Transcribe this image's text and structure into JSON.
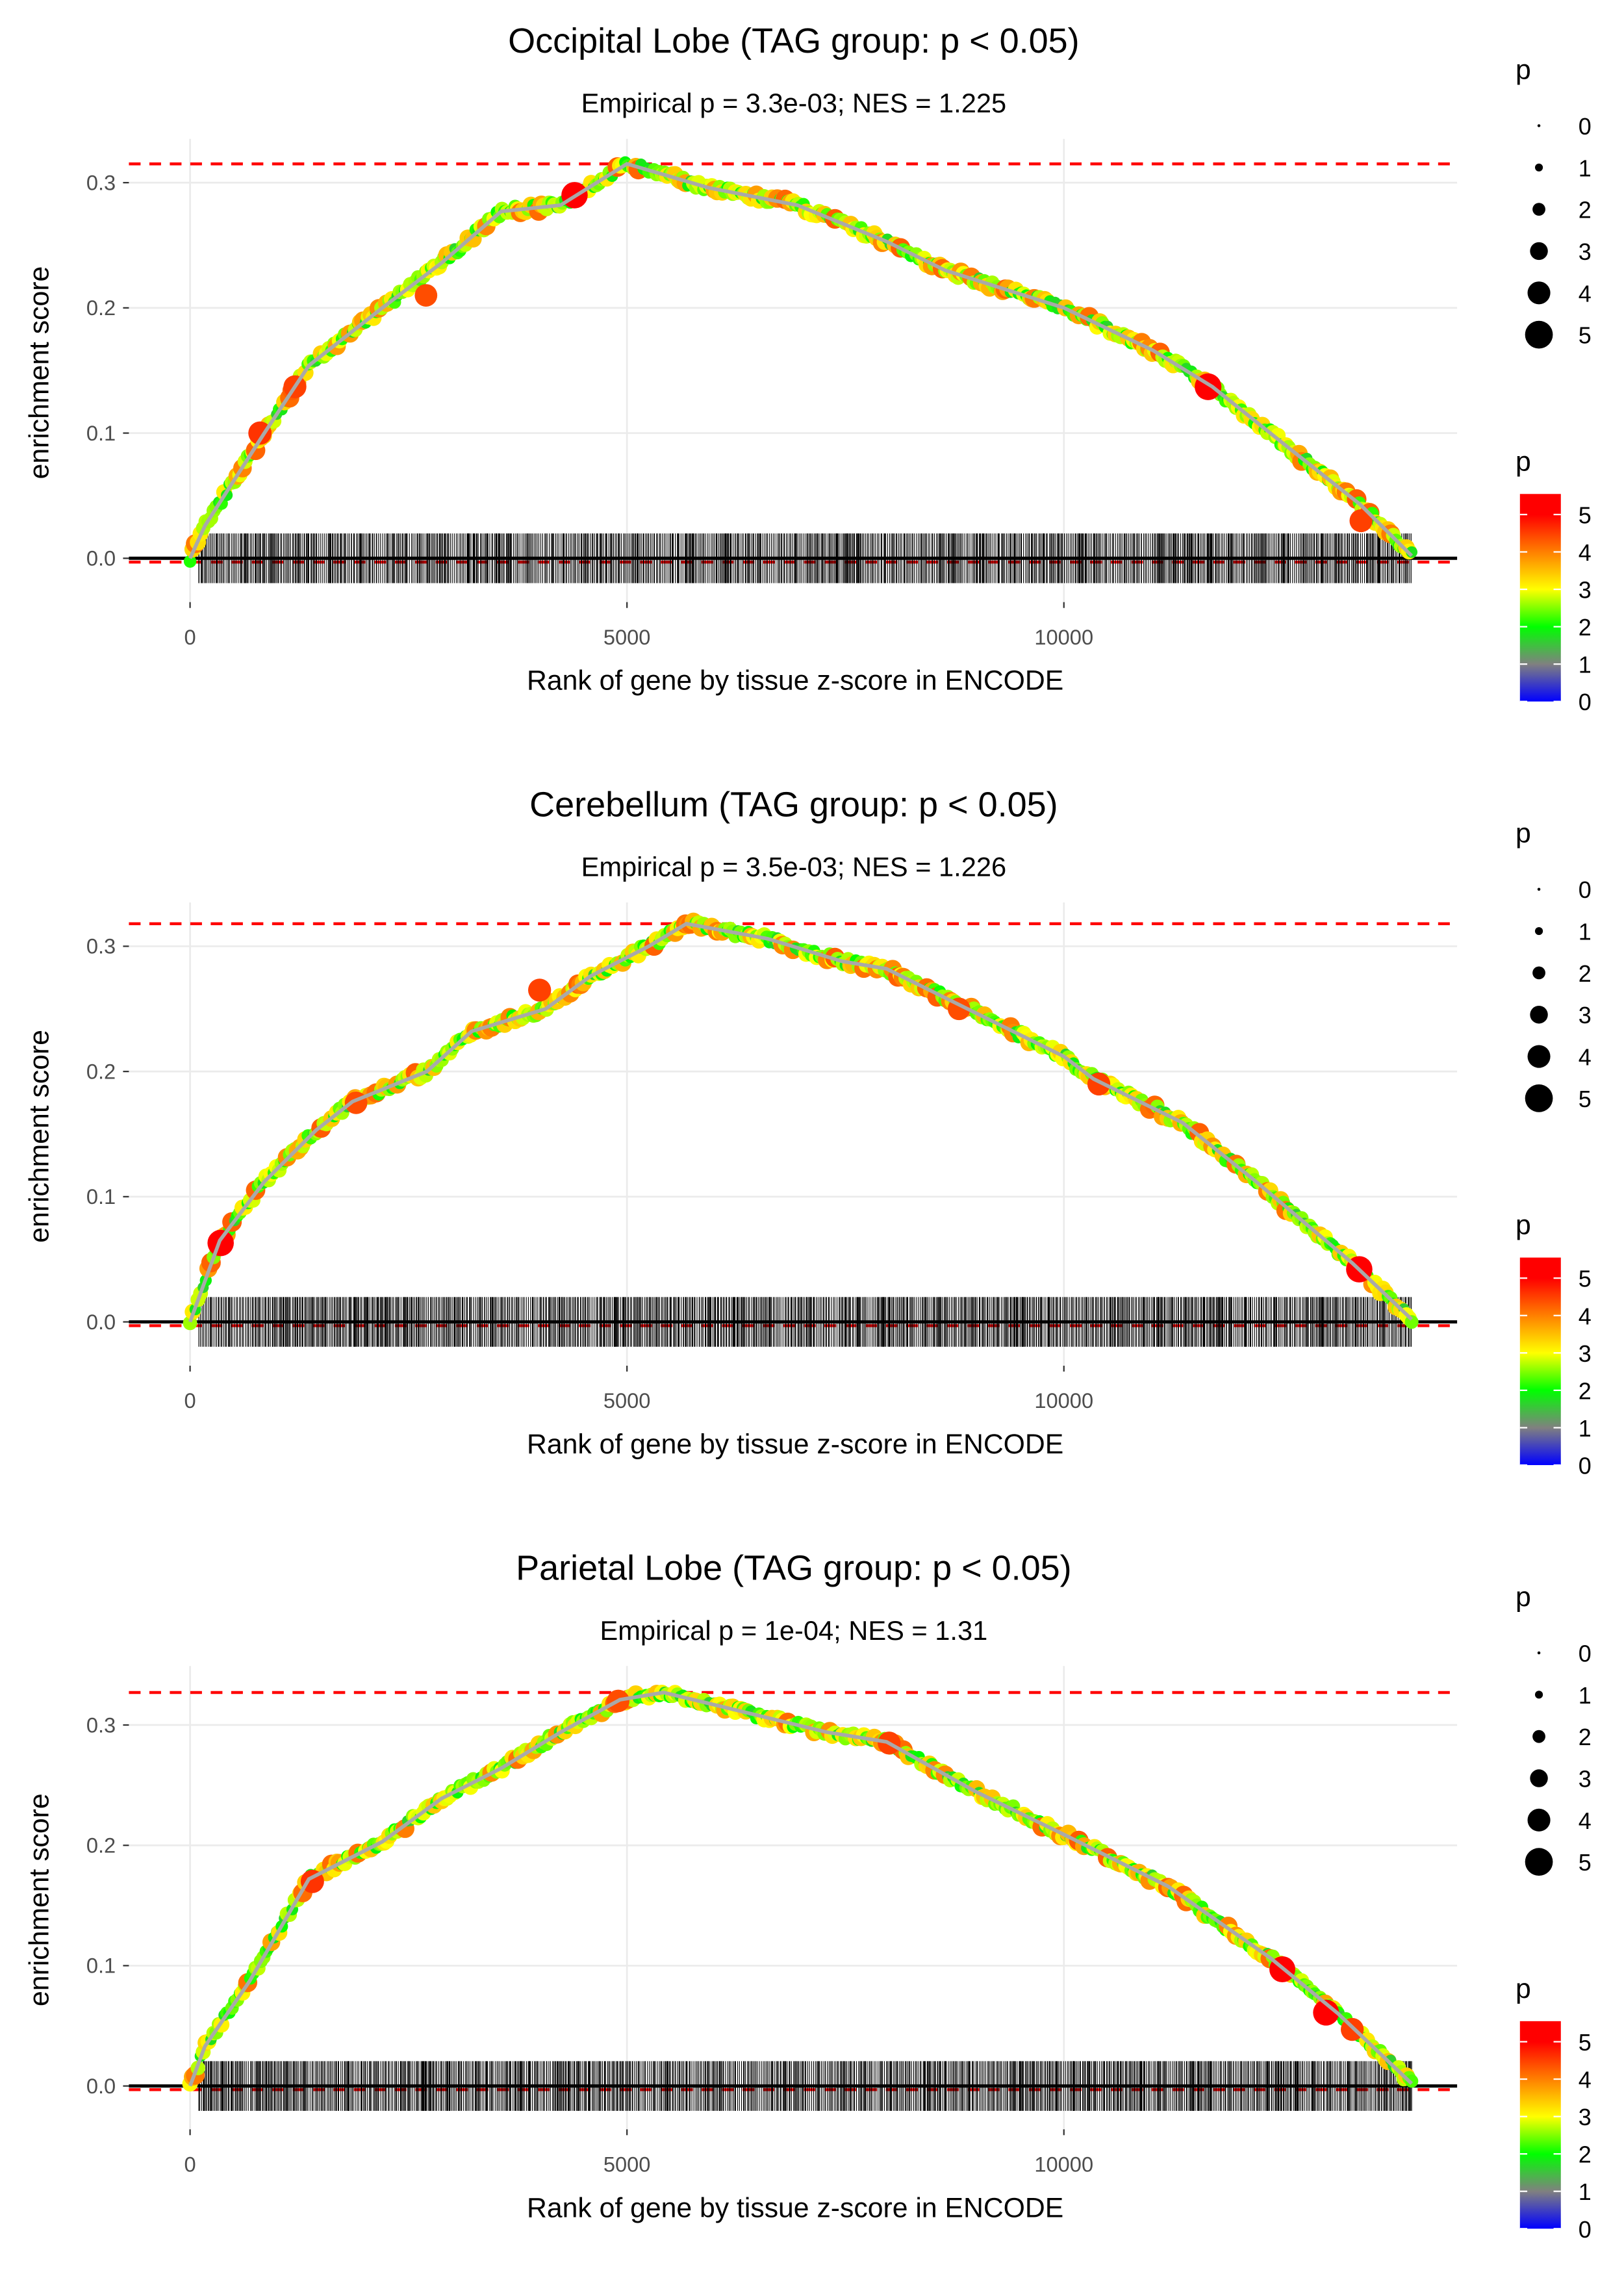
{
  "chart_data": [
    {
      "type": "line",
      "title": "Occipital Lobe (TAG group: p < 0.05)",
      "subtitle": "Empirical p = 3.3e-03; NES = 1.225",
      "xlabel": "Rank of gene by tissue z-score in ENCODE",
      "ylabel": "enrichment score",
      "xlim": [
        -700,
        14500
      ],
      "ylim": [
        -0.035,
        0.335
      ],
      "xticks": [
        0,
        5000,
        10000
      ],
      "xtick_labels": [
        "0",
        "5000",
        "10000"
      ],
      "yticks": [
        0,
        0.1,
        0.2,
        0.3
      ],
      "ytick_labels": [
        "0.0",
        "0.1",
        "0.2",
        "0.3"
      ],
      "max_es": 0.315,
      "min_es": -0.003,
      "hit_rank_range": [
        100,
        13980
      ],
      "curve": [
        [
          0,
          0
        ],
        [
          170,
          0.026
        ],
        [
          850,
          0.1
        ],
        [
          1360,
          0.154
        ],
        [
          2200,
          0.2
        ],
        [
          2880,
          0.236
        ],
        [
          3560,
          0.277
        ],
        [
          4240,
          0.282
        ],
        [
          5000,
          0.315
        ],
        [
          5930,
          0.296
        ],
        [
          6950,
          0.282
        ],
        [
          7970,
          0.253
        ],
        [
          8640,
          0.23
        ],
        [
          10000,
          0.2
        ],
        [
          11020,
          0.166
        ],
        [
          11700,
          0.137
        ],
        [
          12540,
          0.09
        ],
        [
          13390,
          0.043
        ],
        [
          13980,
          0.002
        ]
      ],
      "highlight_points": [
        [
          4400,
          0.29,
          5.4
        ],
        [
          11650,
          0.137,
          5.5
        ],
        [
          800,
          0.1,
          4.6
        ],
        [
          1200,
          0.137,
          4.5
        ],
        [
          13400,
          0.03,
          4.5
        ],
        [
          2700,
          0.21,
          4.4
        ]
      ]
    },
    {
      "type": "line",
      "title": "Cerebellum (TAG group: p < 0.05)",
      "subtitle": "Empirical p = 3.5e-03; NES = 1.226",
      "xlabel": "Rank of gene by tissue z-score in ENCODE",
      "ylabel": "enrichment score",
      "xlim": [
        -700,
        14500
      ],
      "ylim": [
        -0.035,
        0.335
      ],
      "xticks": [
        0,
        5000,
        10000
      ],
      "xtick_labels": [
        "0",
        "5000",
        "10000"
      ],
      "yticks": [
        0,
        0.1,
        0.2,
        0.3
      ],
      "ytick_labels": [
        "0.0",
        "0.1",
        "0.2",
        "0.3"
      ],
      "max_es": 0.318,
      "min_es": -0.003,
      "hit_rank_range": [
        100,
        13980
      ],
      "curve": [
        [
          0,
          0
        ],
        [
          340,
          0.065
        ],
        [
          850,
          0.112
        ],
        [
          1440,
          0.153
        ],
        [
          1860,
          0.176
        ],
        [
          2710,
          0.2
        ],
        [
          3220,
          0.232
        ],
        [
          4070,
          0.25
        ],
        [
          4580,
          0.276
        ],
        [
          5250,
          0.3
        ],
        [
          5680,
          0.318
        ],
        [
          6610,
          0.306
        ],
        [
          7460,
          0.288
        ],
        [
          7970,
          0.282
        ],
        [
          8810,
          0.253
        ],
        [
          10000,
          0.212
        ],
        [
          10340,
          0.194
        ],
        [
          11360,
          0.159
        ],
        [
          12200,
          0.112
        ],
        [
          13300,
          0.047
        ],
        [
          13980,
          0.002
        ]
      ],
      "highlight_points": [
        [
          350,
          0.063,
          5.4
        ],
        [
          13380,
          0.042,
          5.4
        ],
        [
          4000,
          0.265,
          4.5
        ],
        [
          8800,
          0.25,
          4.4
        ],
        [
          10400,
          0.19,
          4.5
        ],
        [
          1900,
          0.175,
          4.4
        ]
      ]
    },
    {
      "type": "line",
      "title": "Parietal Lobe (TAG group: p < 0.05)",
      "subtitle": "Empirical p = 1e-04; NES = 1.31",
      "xlabel": "Rank of gene by tissue z-score in ENCODE",
      "ylabel": "enrichment score",
      "xlim": [
        -700,
        14500
      ],
      "ylim": [
        -0.036,
        0.349
      ],
      "xticks": [
        0,
        5000,
        10000
      ],
      "xtick_labels": [
        "0",
        "5000",
        "10000"
      ],
      "yticks": [
        0,
        0.1,
        0.2,
        0.3
      ],
      "ytick_labels": [
        "0.0",
        "0.1",
        "0.2",
        "0.3"
      ],
      "max_es": 0.327,
      "min_es": -0.003,
      "hit_rank_range": [
        100,
        13980
      ],
      "curve": [
        [
          0,
          0
        ],
        [
          170,
          0.033
        ],
        [
          680,
          0.087
        ],
        [
          1360,
          0.172
        ],
        [
          2200,
          0.203
        ],
        [
          2880,
          0.239
        ],
        [
          3560,
          0.264
        ],
        [
          4240,
          0.294
        ],
        [
          4920,
          0.321
        ],
        [
          5420,
          0.327
        ],
        [
          6270,
          0.312
        ],
        [
          7290,
          0.294
        ],
        [
          7970,
          0.286
        ],
        [
          8980,
          0.245
        ],
        [
          10000,
          0.209
        ],
        [
          11190,
          0.166
        ],
        [
          12370,
          0.106
        ],
        [
          13140,
          0.06
        ],
        [
          13980,
          0.002
        ]
      ],
      "highlight_points": [
        [
          12500,
          0.097,
          5.3
        ],
        [
          13000,
          0.061,
          5.3
        ],
        [
          1400,
          0.17,
          4.6
        ],
        [
          8000,
          0.285,
          4.5
        ],
        [
          13300,
          0.047,
          4.5
        ],
        [
          4900,
          0.32,
          4.4
        ]
      ]
    }
  ],
  "legend": {
    "size_title": "p",
    "size_labels": [
      "0",
      "1",
      "2",
      "3",
      "4",
      "5"
    ],
    "color_title": "p",
    "color_labels": [
      "0",
      "1",
      "2",
      "3",
      "4",
      "5"
    ],
    "color_stops": [
      "#0000ff",
      "#808080",
      "#00ff00",
      "#ffff00",
      "#ff8000",
      "#ff0000"
    ],
    "color_max": 5.55
  }
}
